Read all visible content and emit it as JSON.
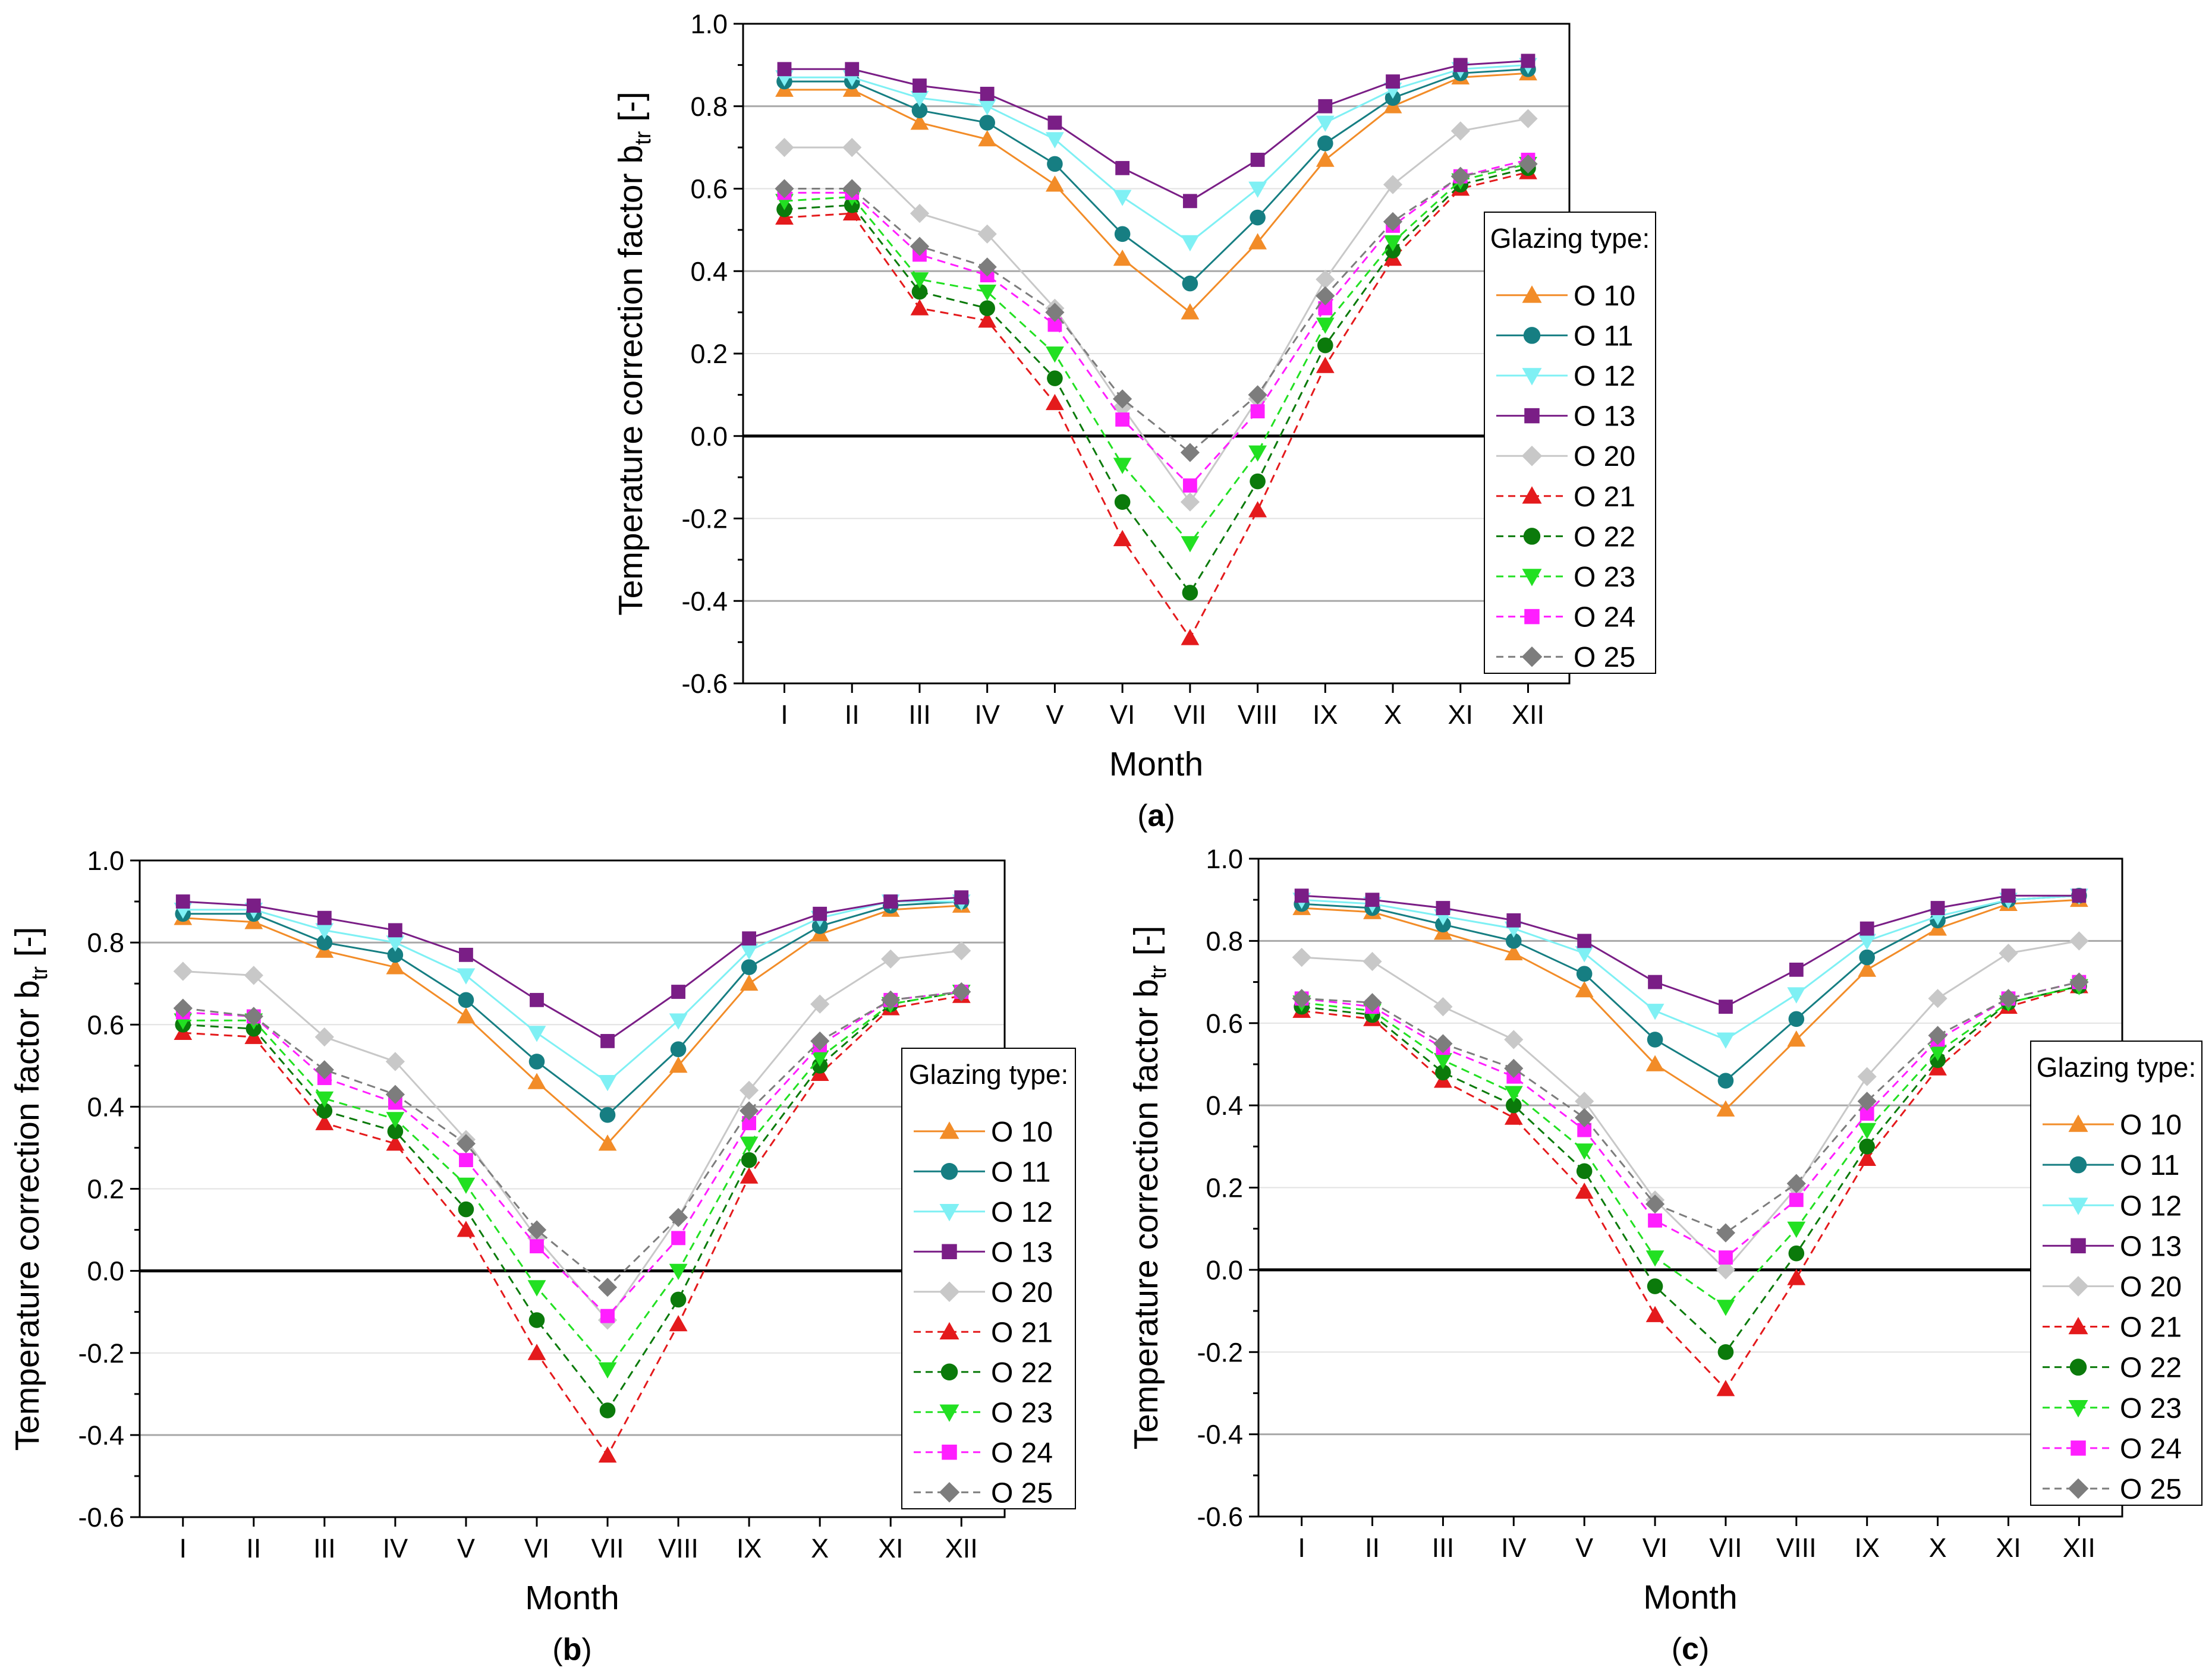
{
  "chart_data": [
    {
      "panel": "(a)",
      "type": "line",
      "xlabel": "Month",
      "ylabel": "Temperature correction factor b",
      "ylabel_sub": "tr",
      "ylabel_suffix": " [-]",
      "ylim": [
        -0.6,
        1.0
      ],
      "yticks": [
        "1.0",
        "0.8",
        "0.6",
        "0.4",
        "0.2",
        "0.0",
        "-0.2",
        "-0.4",
        "-0.6"
      ],
      "categories": [
        "I",
        "II",
        "III",
        "IV",
        "V",
        "VI",
        "VII",
        "VIII",
        "IX",
        "X",
        "XI",
        "XII"
      ],
      "legend_title": "Glazing type:",
      "series": [
        {
          "name": "O 10",
          "values": [
            0.84,
            0.84,
            0.76,
            0.72,
            0.61,
            0.43,
            0.3,
            0.47,
            0.67,
            0.8,
            0.87,
            0.88
          ]
        },
        {
          "name": "O 11",
          "values": [
            0.86,
            0.86,
            0.79,
            0.76,
            0.66,
            0.49,
            0.37,
            0.53,
            0.71,
            0.82,
            0.88,
            0.89
          ]
        },
        {
          "name": "O 12",
          "values": [
            0.87,
            0.87,
            0.82,
            0.8,
            0.72,
            0.58,
            0.47,
            0.6,
            0.76,
            0.84,
            0.89,
            0.9
          ]
        },
        {
          "name": "O 13",
          "values": [
            0.89,
            0.89,
            0.85,
            0.83,
            0.76,
            0.65,
            0.57,
            0.67,
            0.8,
            0.86,
            0.9,
            0.91
          ]
        },
        {
          "name": "O 20",
          "values": [
            0.7,
            0.7,
            0.54,
            0.49,
            0.31,
            0.07,
            -0.16,
            0.09,
            0.38,
            0.61,
            0.74,
            0.77
          ]
        },
        {
          "name": "O 21",
          "values": [
            0.53,
            0.54,
            0.31,
            0.28,
            0.08,
            -0.25,
            -0.49,
            -0.18,
            0.17,
            0.43,
            0.6,
            0.64
          ]
        },
        {
          "name": "O 22",
          "values": [
            0.55,
            0.56,
            0.35,
            0.31,
            0.14,
            -0.16,
            -0.38,
            -0.11,
            0.22,
            0.45,
            0.61,
            0.65
          ]
        },
        {
          "name": "O 23",
          "values": [
            0.57,
            0.58,
            0.38,
            0.35,
            0.2,
            -0.07,
            -0.26,
            -0.04,
            0.27,
            0.47,
            0.62,
            0.66
          ]
        },
        {
          "name": "O 24",
          "values": [
            0.59,
            0.59,
            0.44,
            0.39,
            0.27,
            0.04,
            -0.12,
            0.06,
            0.31,
            0.51,
            0.63,
            0.67
          ]
        },
        {
          "name": "O 25",
          "values": [
            0.6,
            0.6,
            0.46,
            0.41,
            0.3,
            0.09,
            -0.04,
            0.1,
            0.34,
            0.52,
            0.63,
            0.66
          ]
        }
      ]
    },
    {
      "panel": "(b)",
      "type": "line",
      "xlabel": "Month",
      "ylabel": "Temperature correction factor b",
      "ylabel_sub": "tr",
      "ylabel_suffix": " [-]",
      "ylim": [
        -0.6,
        1.0
      ],
      "yticks": [
        "1.0",
        "0.8",
        "0.6",
        "0.4",
        "0.2",
        "0.0",
        "-0.2",
        "-0.4",
        "-0.6"
      ],
      "categories": [
        "I",
        "II",
        "III",
        "IV",
        "V",
        "VI",
        "VII",
        "VIII",
        "IX",
        "X",
        "XI",
        "XII"
      ],
      "legend_title": "Glazing type:",
      "series": [
        {
          "name": "O 10",
          "values": [
            0.86,
            0.85,
            0.78,
            0.74,
            0.62,
            0.46,
            0.31,
            0.5,
            0.7,
            0.82,
            0.88,
            0.89
          ]
        },
        {
          "name": "O 11",
          "values": [
            0.87,
            0.87,
            0.8,
            0.77,
            0.66,
            0.51,
            0.38,
            0.54,
            0.74,
            0.84,
            0.89,
            0.9
          ]
        },
        {
          "name": "O 12",
          "values": [
            0.88,
            0.88,
            0.83,
            0.8,
            0.72,
            0.58,
            0.46,
            0.61,
            0.78,
            0.86,
            0.9,
            0.9
          ]
        },
        {
          "name": "O 13",
          "values": [
            0.9,
            0.89,
            0.86,
            0.83,
            0.77,
            0.66,
            0.56,
            0.68,
            0.81,
            0.87,
            0.9,
            0.91
          ]
        },
        {
          "name": "O 20",
          "values": [
            0.73,
            0.72,
            0.57,
            0.51,
            0.32,
            0.08,
            -0.12,
            0.13,
            0.44,
            0.65,
            0.76,
            0.78
          ]
        },
        {
          "name": "O 21",
          "values": [
            0.58,
            0.57,
            0.36,
            0.31,
            0.1,
            -0.2,
            -0.45,
            -0.13,
            0.23,
            0.48,
            0.64,
            0.67
          ]
        },
        {
          "name": "O 22",
          "values": [
            0.6,
            0.59,
            0.39,
            0.34,
            0.15,
            -0.12,
            -0.34,
            -0.07,
            0.27,
            0.5,
            0.65,
            0.68
          ]
        },
        {
          "name": "O 23",
          "values": [
            0.61,
            0.61,
            0.42,
            0.37,
            0.21,
            -0.04,
            -0.24,
            0.0,
            0.31,
            0.52,
            0.65,
            0.68
          ]
        },
        {
          "name": "O 24",
          "values": [
            0.63,
            0.62,
            0.47,
            0.41,
            0.27,
            0.06,
            -0.11,
            0.08,
            0.36,
            0.55,
            0.66,
            0.68
          ]
        },
        {
          "name": "O 25",
          "values": [
            0.64,
            0.62,
            0.49,
            0.43,
            0.31,
            0.1,
            -0.04,
            0.13,
            0.39,
            0.56,
            0.66,
            0.68
          ]
        }
      ]
    },
    {
      "panel": "(c)",
      "type": "line",
      "xlabel": "Month",
      "ylabel": "Temperature correction factor b",
      "ylabel_sub": "tr",
      "ylabel_suffix": " [-]",
      "ylim": [
        -0.6,
        1.0
      ],
      "yticks": [
        "1.0",
        "0.8",
        "0.6",
        "0.4",
        "0.2",
        "0.0",
        "-0.2",
        "-0.4",
        "-0.6"
      ],
      "categories": [
        "I",
        "II",
        "III",
        "IV",
        "V",
        "VI",
        "VII",
        "VIII",
        "IX",
        "X",
        "XI",
        "XII"
      ],
      "legend_title": "Glazing type:",
      "series": [
        {
          "name": "O 10",
          "values": [
            0.88,
            0.87,
            0.82,
            0.77,
            0.68,
            0.5,
            0.39,
            0.56,
            0.73,
            0.83,
            0.89,
            0.9
          ]
        },
        {
          "name": "O 11",
          "values": [
            0.89,
            0.88,
            0.84,
            0.8,
            0.72,
            0.56,
            0.46,
            0.61,
            0.76,
            0.85,
            0.9,
            0.91
          ]
        },
        {
          "name": "O 12",
          "values": [
            0.9,
            0.89,
            0.86,
            0.83,
            0.77,
            0.63,
            0.56,
            0.67,
            0.8,
            0.86,
            0.9,
            0.91
          ]
        },
        {
          "name": "O 13",
          "values": [
            0.91,
            0.9,
            0.88,
            0.85,
            0.8,
            0.7,
            0.64,
            0.73,
            0.83,
            0.88,
            0.91,
            0.91
          ]
        },
        {
          "name": "O 20",
          "values": [
            0.76,
            0.75,
            0.64,
            0.56,
            0.41,
            0.17,
            0.0,
            0.2,
            0.47,
            0.66,
            0.77,
            0.8
          ]
        },
        {
          "name": "O 21",
          "values": [
            0.63,
            0.61,
            0.46,
            0.37,
            0.19,
            -0.11,
            -0.29,
            -0.02,
            0.27,
            0.49,
            0.64,
            0.69
          ]
        },
        {
          "name": "O 22",
          "values": [
            0.64,
            0.62,
            0.48,
            0.4,
            0.24,
            -0.04,
            -0.2,
            0.04,
            0.3,
            0.51,
            0.65,
            0.69
          ]
        },
        {
          "name": "O 23",
          "values": [
            0.65,
            0.63,
            0.51,
            0.43,
            0.29,
            0.03,
            -0.09,
            0.1,
            0.34,
            0.53,
            0.65,
            0.69
          ]
        },
        {
          "name": "O 24",
          "values": [
            0.66,
            0.64,
            0.54,
            0.47,
            0.34,
            0.12,
            0.03,
            0.17,
            0.38,
            0.56,
            0.66,
            0.7
          ]
        },
        {
          "name": "O 25",
          "values": [
            0.66,
            0.65,
            0.55,
            0.49,
            0.37,
            0.16,
            0.09,
            0.21,
            0.41,
            0.57,
            0.66,
            0.7
          ]
        }
      ]
    }
  ],
  "series_styles": [
    {
      "color": "#F28C28",
      "marker": "triangle-up",
      "dash": "solid"
    },
    {
      "color": "#167E82",
      "marker": "circle",
      "dash": "solid"
    },
    {
      "color": "#7FF0F4",
      "marker": "triangle-down",
      "dash": "solid"
    },
    {
      "color": "#7A1E86",
      "marker": "square",
      "dash": "solid"
    },
    {
      "color": "#C8C8C8",
      "marker": "diamond",
      "dash": "solid"
    },
    {
      "color": "#E41A1C",
      "marker": "triangle-up",
      "dash": "dashed"
    },
    {
      "color": "#0B7A0B",
      "marker": "circle",
      "dash": "dashed"
    },
    {
      "color": "#22E022",
      "marker": "triangle-down",
      "dash": "dashed"
    },
    {
      "color": "#FF1EFF",
      "marker": "square",
      "dash": "dashed"
    },
    {
      "color": "#7D7D7D",
      "marker": "diamond",
      "dash": "dashed"
    }
  ]
}
